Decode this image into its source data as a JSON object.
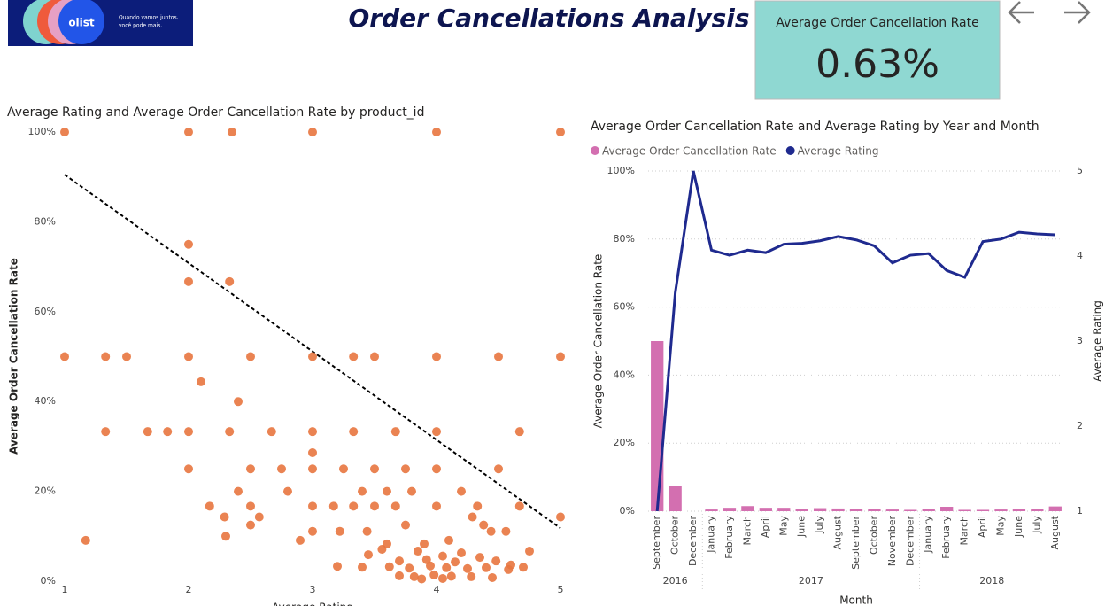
{
  "header": {
    "logo_brand": "olist",
    "logo_tagline": [
      "Quando vamos juntos,",
      "você pode mais."
    ],
    "title": "Order Cancellations Analysis"
  },
  "kpi": {
    "label": "Average Order Cancellation Rate",
    "value": "0.63%"
  },
  "chart_data": [
    {
      "type": "scatter",
      "title": "Average Rating and Average Order Cancellation Rate by product_id",
      "xlabel": "Average Rating",
      "ylabel": "Average Order Cancellation Rate",
      "color": "#e8763f",
      "x": [
        1,
        2,
        2.35,
        3,
        4,
        5,
        2,
        2,
        2.33,
        1,
        1.33,
        1.5,
        2,
        2.5,
        3,
        3.33,
        3.5,
        4,
        4.5,
        5,
        2.1,
        2.4,
        1.33,
        1.67,
        1.83,
        2,
        2.33,
        2.67,
        3,
        3.33,
        3.67,
        4,
        4.67,
        3,
        2,
        2.5,
        2.75,
        3,
        3.25,
        3.5,
        3.75,
        4,
        4.5,
        2.4,
        2.8,
        3.4,
        3.6,
        3.8,
        4.2,
        2.17,
        2.5,
        3,
        3.17,
        3.33,
        3.5,
        3.67,
        4,
        4.33,
        4.67,
        2.29,
        2.57,
        4.29,
        5,
        2.5,
        3.75,
        4.38,
        3,
        3.22,
        3.44,
        4.44,
        4.56,
        1.17,
        2.3,
        2.9,
        4.1,
        3.9,
        3.6,
        3.56,
        3.85,
        4.2,
        4.75,
        3.45,
        4.05,
        4.35,
        3.7,
        3.92,
        4.15,
        4.48,
        4.6,
        3.2,
        3.4,
        3.62,
        3.78,
        3.95,
        4.08,
        4.25,
        4.4,
        4.58,
        4.7,
        3.7,
        3.82,
        3.98,
        4.12,
        4.28,
        4.45,
        3.88,
        4.05
      ],
      "y": [
        100,
        100,
        100,
        100,
        100,
        100,
        75,
        66.7,
        66.7,
        50,
        50,
        50,
        50,
        50,
        50,
        50,
        50,
        50,
        50,
        50,
        44.4,
        40,
        33.3,
        33.3,
        33.3,
        33.3,
        33.3,
        33.3,
        33.3,
        33.3,
        33.3,
        33.3,
        33.3,
        28.6,
        25,
        25,
        25,
        25,
        25,
        25,
        25,
        25,
        25,
        20,
        20,
        20,
        20,
        20,
        20,
        16.7,
        16.7,
        16.7,
        16.7,
        16.7,
        16.7,
        16.7,
        16.7,
        16.7,
        16.7,
        14.3,
        14.3,
        14.3,
        14.3,
        12.5,
        12.5,
        12.5,
        11.1,
        11.1,
        11.1,
        11.1,
        11.1,
        9.1,
        10,
        9.1,
        9.1,
        8.3,
        8.3,
        7.1,
        6.7,
        6.3,
        6.7,
        5.9,
        5.6,
        5.3,
        4.5,
        4.8,
        4.3,
        4.5,
        3.6,
        3.3,
        3.1,
        3.2,
        2.9,
        3.4,
        3.0,
        2.8,
        3.0,
        2.6,
        3.1,
        1.2,
        1.0,
        1.4,
        1.1,
        1.0,
        0.8,
        0.5,
        0.6
      ],
      "trendline": {
        "x": [
          1,
          5
        ],
        "y": [
          90.5,
          11.8
        ],
        "color": "#000000"
      },
      "xlim": [
        1,
        5
      ],
      "xticks": [
        1,
        2,
        3,
        4,
        5
      ],
      "ylim": [
        0,
        100
      ],
      "yticks": [
        {
          "value": 0,
          "label": "0%"
        },
        {
          "value": 20,
          "label": "20%"
        },
        {
          "value": 40,
          "label": "40%"
        },
        {
          "value": 60,
          "label": "60%"
        },
        {
          "value": 80,
          "label": "80%"
        },
        {
          "value": 100,
          "label": "100%"
        }
      ]
    },
    {
      "type": "combo",
      "title": "Average Order Cancellation Rate and Average Rating by Year and Month",
      "xlabel": "Month",
      "ylabel": "Average Order Cancellation Rate",
      "y2label": "Average Rating",
      "legend": "top-left",
      "grid": true,
      "categories": [
        "September",
        "October",
        "December",
        "January",
        "February",
        "March",
        "April",
        "May",
        "June",
        "July",
        "August",
        "September",
        "October",
        "November",
        "December",
        "January",
        "February",
        "March",
        "April",
        "May",
        "June",
        "July",
        "August"
      ],
      "years": [
        "2016",
        "2016",
        "2016",
        "2017",
        "2017",
        "2017",
        "2017",
        "2017",
        "2017",
        "2017",
        "2017",
        "2017",
        "2017",
        "2017",
        "2017",
        "2018",
        "2018",
        "2018",
        "2018",
        "2018",
        "2018",
        "2018",
        "2018"
      ],
      "series": [
        {
          "name": "Average Order Cancellation Rate",
          "color": "#d36fb0",
          "kind": "bar",
          "values": [
            50,
            7.5,
            0,
            0.5,
            1,
            1.5,
            1,
            1,
            0.7,
            0.9,
            0.8,
            0.6,
            0.6,
            0.5,
            0.4,
            0.6,
            1.3,
            0.4,
            0.4,
            0.5,
            0.6,
            0.7,
            1.4
          ]
        },
        {
          "name": "Average Rating",
          "color": "#1f2a8f",
          "kind": "line",
          "axis": "y2",
          "values": [
            1.0,
            3.57,
            5.0,
            4.07,
            4.01,
            4.07,
            4.04,
            4.14,
            4.15,
            4.18,
            4.23,
            4.19,
            4.12,
            3.92,
            4.01,
            4.03,
            3.83,
            3.75,
            4.17,
            4.2,
            4.28,
            4.26,
            4.25
          ]
        }
      ],
      "ylim": [
        0,
        100
      ],
      "yticks": [
        {
          "value": 0,
          "label": "0%"
        },
        {
          "value": 20,
          "label": "20%"
        },
        {
          "value": 40,
          "label": "40%"
        },
        {
          "value": 60,
          "label": "60%"
        },
        {
          "value": 80,
          "label": "80%"
        },
        {
          "value": 100,
          "label": "100%"
        }
      ],
      "y2lim": [
        1,
        5
      ],
      "y2ticks": [
        1,
        2,
        3,
        4,
        5
      ]
    }
  ]
}
